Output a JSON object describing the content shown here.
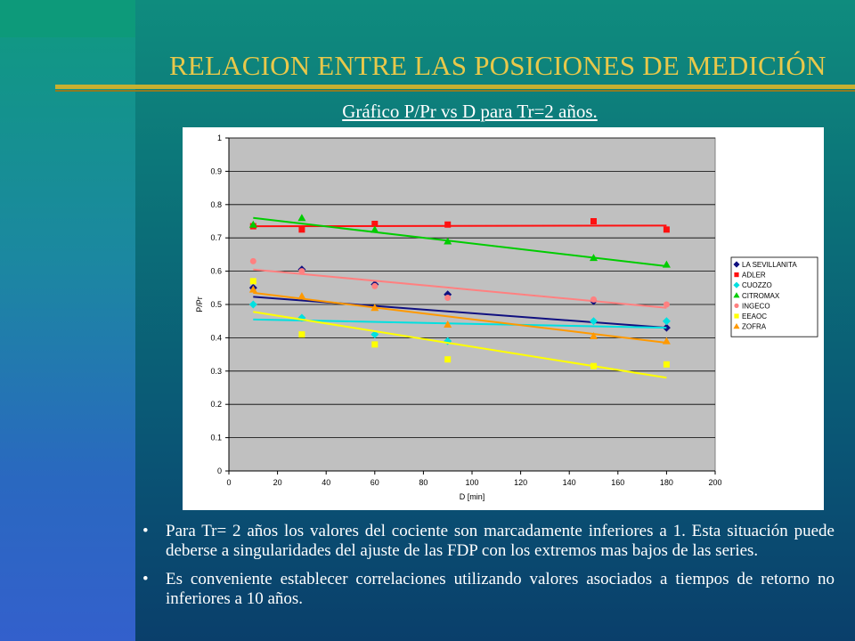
{
  "slide": {
    "title": "RELACION ENTRE LAS POSICIONES DE MEDICIÓN",
    "subtitle": "Gráfico P/Pr vs D para Tr=2 años.",
    "bullets": [
      "Para Tr= 2 años los valores del cociente son marcadamente inferiores a 1. Esta situación puede deberse a singularidades del ajuste de las FDP con los extremos mas bajos de las series.",
      "Es conveniente establecer correlaciones utilizando valores asociados a tiempos de retorno no inferiores a 10 años."
    ],
    "colors": {
      "title": "#e8c84a",
      "rule": "#c7b030",
      "text": "#ffffff"
    }
  },
  "chart_data": {
    "type": "scatter",
    "xlabel": "D [min]",
    "ylabel": "P/Pr",
    "xlim": [
      0,
      200
    ],
    "ylim": [
      0,
      1
    ],
    "xticks": [
      "0",
      "20",
      "40",
      "60",
      "80",
      "100",
      "120",
      "140",
      "160",
      "180",
      "200"
    ],
    "yticks": [
      "0",
      "0.1",
      "0.2",
      "0.3",
      "0.4",
      "0.5",
      "0.6",
      "0.7",
      "0.8",
      "0.9",
      "1"
    ],
    "grid": true,
    "legend_position": "right",
    "plot_background": "#c0c0c0",
    "x": [
      10,
      30,
      60,
      90,
      150,
      180
    ],
    "series": [
      {
        "name": "LA SEVILLANITA",
        "marker": "diamond",
        "color": "#101080",
        "values": [
          0.55,
          0.605,
          0.56,
          0.53,
          0.51,
          0.43
        ],
        "trend": [
          0.523,
          0.43
        ]
      },
      {
        "name": "ADLER",
        "marker": "square",
        "color": "#ff1010",
        "values": [
          0.735,
          0.725,
          0.742,
          0.74,
          0.75,
          0.725
        ],
        "trend": [
          0.735,
          0.737
        ]
      },
      {
        "name": "CUOZZO",
        "marker": "diamond",
        "color": "#00e0e0",
        "values": [
          0.5,
          0.46,
          0.41,
          0.39,
          0.45,
          0.45
        ],
        "trend": [
          0.455,
          0.43
        ]
      },
      {
        "name": "CITROMAX",
        "marker": "triangle",
        "color": "#00cc00",
        "values": [
          0.74,
          0.76,
          0.725,
          0.69,
          0.64,
          0.62
        ],
        "trend": [
          0.76,
          0.615
        ]
      },
      {
        "name": "INGECO",
        "marker": "circle",
        "color": "#ff8080",
        "values": [
          0.63,
          0.6,
          0.555,
          0.52,
          0.515,
          0.5
        ],
        "trend": [
          0.605,
          0.49
        ]
      },
      {
        "name": "EEAOC",
        "marker": "square",
        "color": "#ffff00",
        "values": [
          0.57,
          0.41,
          0.38,
          0.335,
          0.315,
          0.32
        ],
        "trend": [
          0.478,
          0.28
        ]
      },
      {
        "name": "ZOFRA",
        "marker": "triangle",
        "color": "#ff9900",
        "values": [
          0.545,
          0.525,
          0.49,
          0.44,
          0.405,
          0.39
        ],
        "trend": [
          0.535,
          0.385
        ]
      }
    ]
  }
}
